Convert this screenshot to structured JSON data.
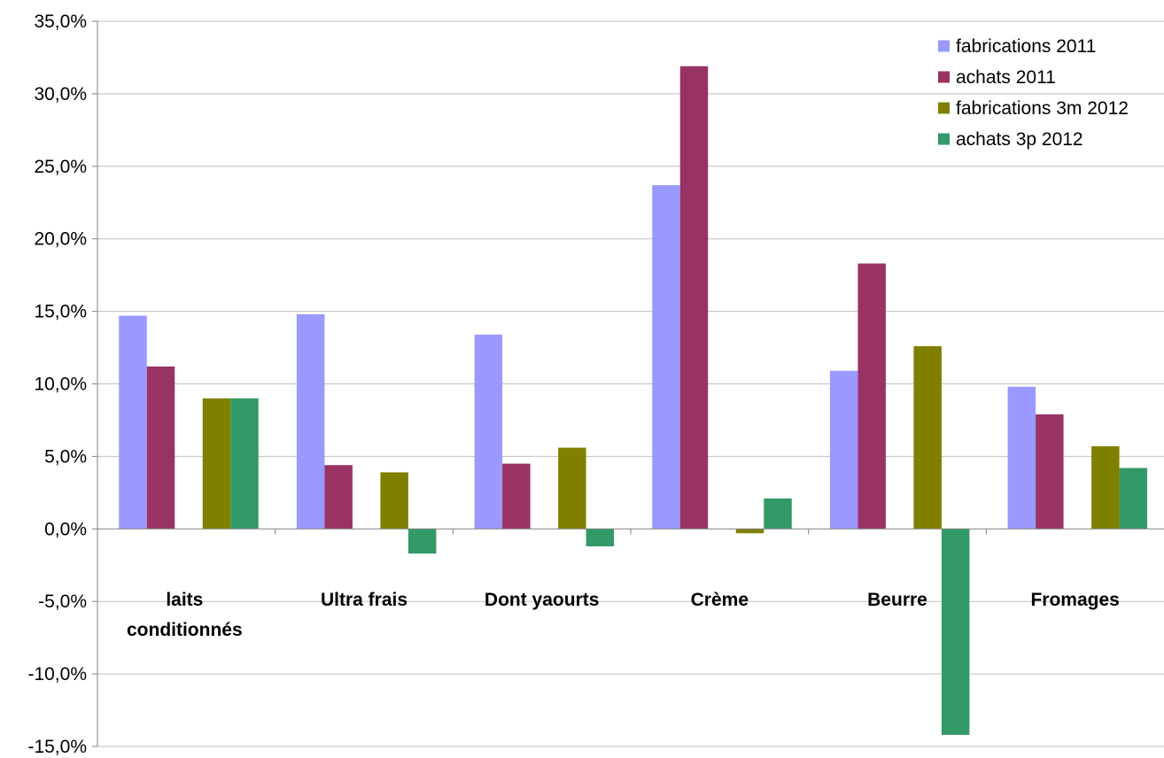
{
  "chart_data": {
    "type": "bar",
    "categories": [
      [
        "laits",
        "conditionnés"
      ],
      [
        "Ultra frais"
      ],
      [
        "Dont yaourts"
      ],
      [
        "Crème"
      ],
      [
        "Beurre"
      ],
      [
        "Fromages"
      ]
    ],
    "series": [
      {
        "name": "fabrications 2011",
        "color": "#9999FF",
        "values": [
          14.7,
          14.8,
          13.4,
          23.7,
          10.9,
          9.8
        ]
      },
      {
        "name": "achats 2011",
        "color": "#993366",
        "values": [
          11.2,
          4.4,
          4.5,
          31.9,
          18.3,
          7.9
        ]
      },
      {
        "name": "fabrications 3m 2012",
        "color": "#808000",
        "values": [
          9.0,
          3.9,
          5.6,
          -0.3,
          12.6,
          5.7
        ]
      },
      {
        "name": "achats 3p 2012",
        "color": "#339966",
        "values": [
          9.0,
          -1.7,
          -1.2,
          2.1,
          -14.2,
          4.2
        ]
      }
    ],
    "yticks": [
      "35,0%",
      "30,0%",
      "25,0%",
      "20,0%",
      "15,0%",
      "10,0%",
      "5,0%",
      "0,0%",
      "-5,0%",
      "-10,0%",
      "-15,0%"
    ],
    "ylim": [
      -15,
      35
    ],
    "grid": true,
    "legend_position": "top-right"
  }
}
